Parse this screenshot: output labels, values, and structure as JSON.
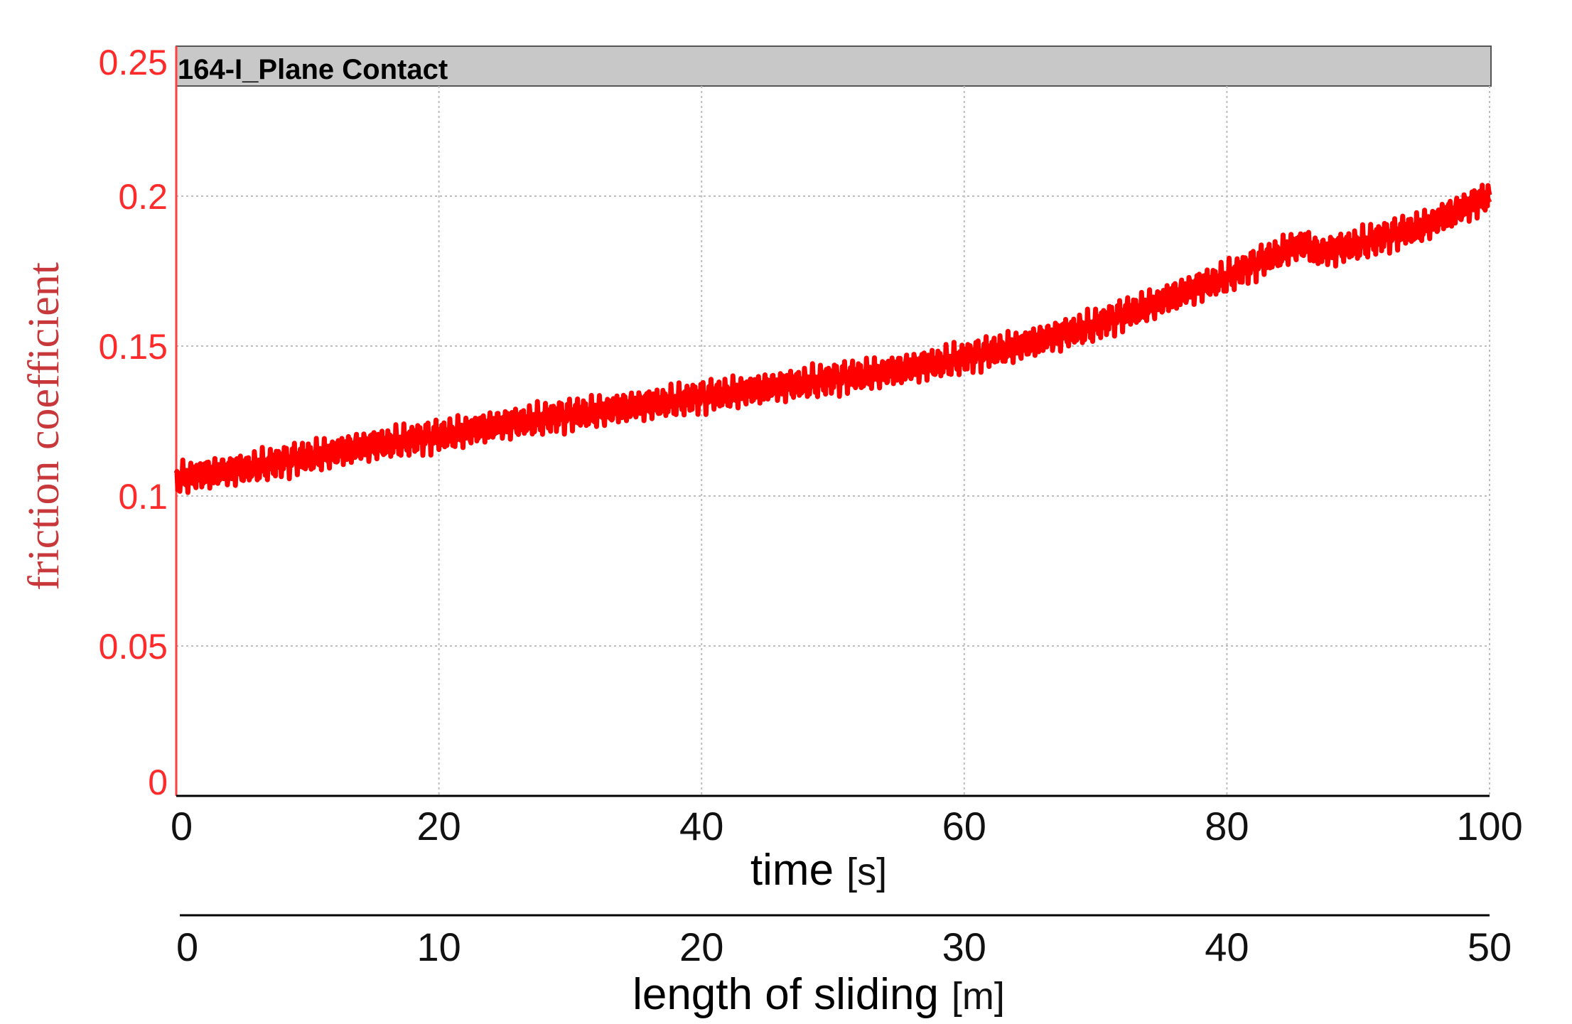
{
  "chart_data": {
    "type": "line",
    "title": "164-I_Plane Contact",
    "ylabel": "friction coefficient",
    "xlabel": "time",
    "xlabel_unit": "[s]",
    "x2label": "length of sliding",
    "x2label_unit": "[m]",
    "ylim": [
      0,
      0.25
    ],
    "xlim": [
      0,
      100
    ],
    "x2lim": [
      0,
      50
    ],
    "yticks": [
      "0",
      "0.05",
      "0.1",
      "0.15",
      "0.2",
      "0.25"
    ],
    "ytick_values": [
      0,
      0.05,
      0.1,
      0.15,
      0.2,
      0.25
    ],
    "xticks": [
      "0",
      "20",
      "40",
      "60",
      "80",
      "100"
    ],
    "xtick_values": [
      0,
      20,
      40,
      60,
      80,
      100
    ],
    "x2ticks": [
      "0",
      "10",
      "20",
      "30",
      "40",
      "50"
    ],
    "x2tick_values": [
      0,
      10,
      20,
      30,
      40,
      50
    ],
    "grid": true,
    "series_color": "#ff0000",
    "series": [
      {
        "x": [
          0,
          5,
          10,
          15,
          20,
          25,
          30,
          35,
          40,
          45,
          50,
          55,
          60,
          65,
          70,
          75,
          78,
          80,
          83,
          85,
          86,
          87,
          90,
          95,
          100
        ],
        "y": [
          0.106,
          0.109,
          0.113,
          0.117,
          0.12,
          0.124,
          0.127,
          0.13,
          0.133,
          0.136,
          0.139,
          0.142,
          0.146,
          0.151,
          0.157,
          0.165,
          0.17,
          0.173,
          0.179,
          0.183,
          0.184,
          0.181,
          0.184,
          0.19,
          0.2
        ]
      }
    ]
  }
}
